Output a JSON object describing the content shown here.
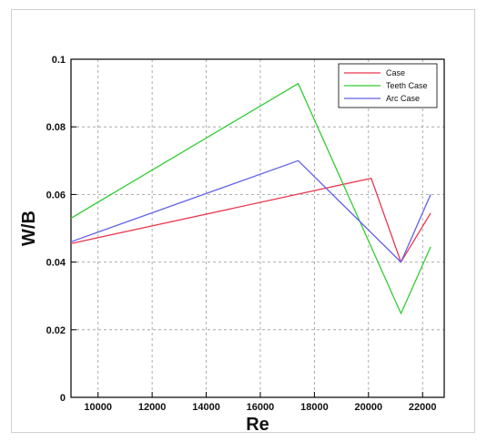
{
  "chart_data": {
    "type": "line",
    "xlabel": "Re",
    "ylabel": "W/B",
    "xlim": [
      9000,
      22800
    ],
    "ylim": [
      0,
      0.1
    ],
    "xticks": [
      10000,
      12000,
      14000,
      16000,
      18000,
      20000,
      22000
    ],
    "yticks": [
      0,
      0.02,
      0.04,
      0.06,
      0.08,
      0.1
    ],
    "xtick_labels": [
      "10000",
      "12000",
      "14000",
      "16000",
      "18000",
      "20000",
      "22000"
    ],
    "ytick_labels": [
      "0",
      "0.02",
      "0.04",
      "0.06",
      "0.08",
      "0.1"
    ],
    "grid": true,
    "grid_style": "dashed",
    "legend_position": "top-right",
    "series": [
      {
        "name": "Case",
        "color": "#e8384f",
        "points": [
          [
            9000,
            0.0455
          ],
          [
            20100,
            0.0648
          ],
          [
            21200,
            0.04
          ],
          [
            22300,
            0.0545
          ]
        ]
      },
      {
        "name": "Teeth Case",
        "color": "#33cc33",
        "points": [
          [
            9000,
            0.053
          ],
          [
            17400,
            0.0928
          ],
          [
            21200,
            0.0248
          ],
          [
            22300,
            0.0445
          ]
        ]
      },
      {
        "name": "Arc Case",
        "color": "#6060e8",
        "points": [
          [
            9000,
            0.046
          ],
          [
            17400,
            0.07
          ],
          [
            21200,
            0.04
          ],
          [
            22300,
            0.06
          ]
        ]
      }
    ]
  }
}
